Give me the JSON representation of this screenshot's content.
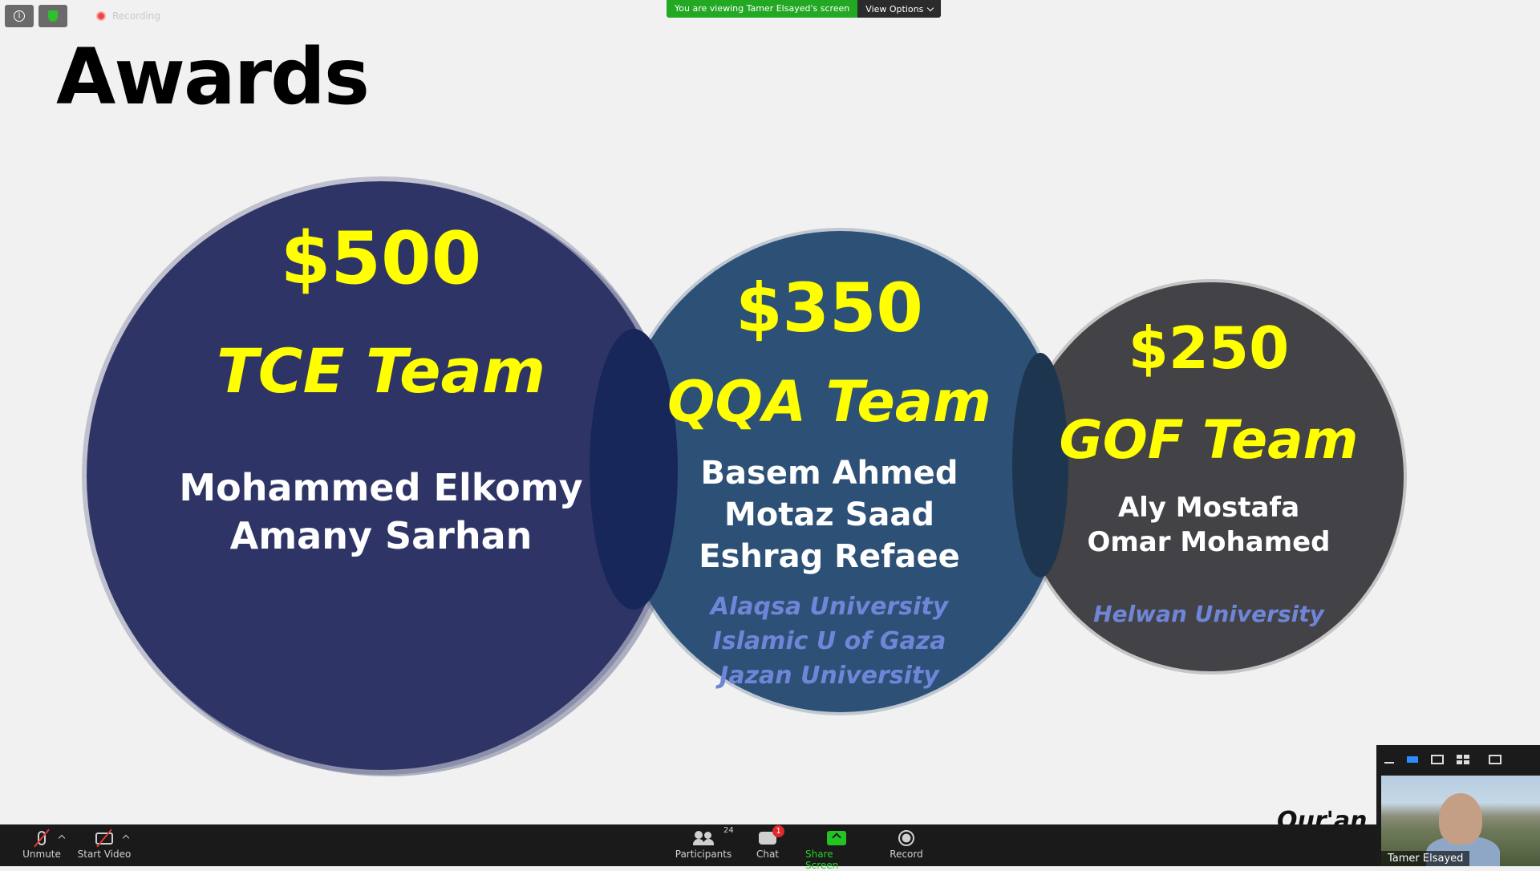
{
  "top_bar": {
    "recording_label": "Recording",
    "viewing_message": "You are viewing Tamer Elsayed's screen",
    "view_options_label": "View Options"
  },
  "slide": {
    "title": "Awards",
    "awards": [
      {
        "amount": "$500",
        "team": "TCE Team",
        "names": [
          "Mohammed Elkomy",
          "Amany Sarhan"
        ],
        "universities": []
      },
      {
        "amount": "$350",
        "team": "QQA Team",
        "names": [
          "Basem Ahmed",
          "Motaz Saad",
          "Eshrag Refaee"
        ],
        "universities": [
          "Alaqsa University",
          "Islamic U of Gaza",
          "Jazan University"
        ]
      },
      {
        "amount": "$250",
        "team": "GOF Team",
        "names": [
          "Aly Mostafa",
          "Omar Mohamed"
        ],
        "universities": [
          "Helwan University"
        ]
      }
    ],
    "footer_partial": "Qur'an Q"
  },
  "self_video": {
    "name": "Tamer Elsayed"
  },
  "toolbar": {
    "unmute_label": "Unmute",
    "start_video_label": "Start Video",
    "participants_label": "Participants",
    "participants_count": "24",
    "chat_label": "Chat",
    "chat_badge": "1",
    "share_screen_label": "Share Screen",
    "record_label": "Record"
  },
  "colors": {
    "circle_1": "#2e3566",
    "circle_2": "#2d5076",
    "circle_3": "#424247",
    "accent_yellow": "#ffff00",
    "university_blue": "#6f86d8",
    "share_green": "#23c323"
  }
}
